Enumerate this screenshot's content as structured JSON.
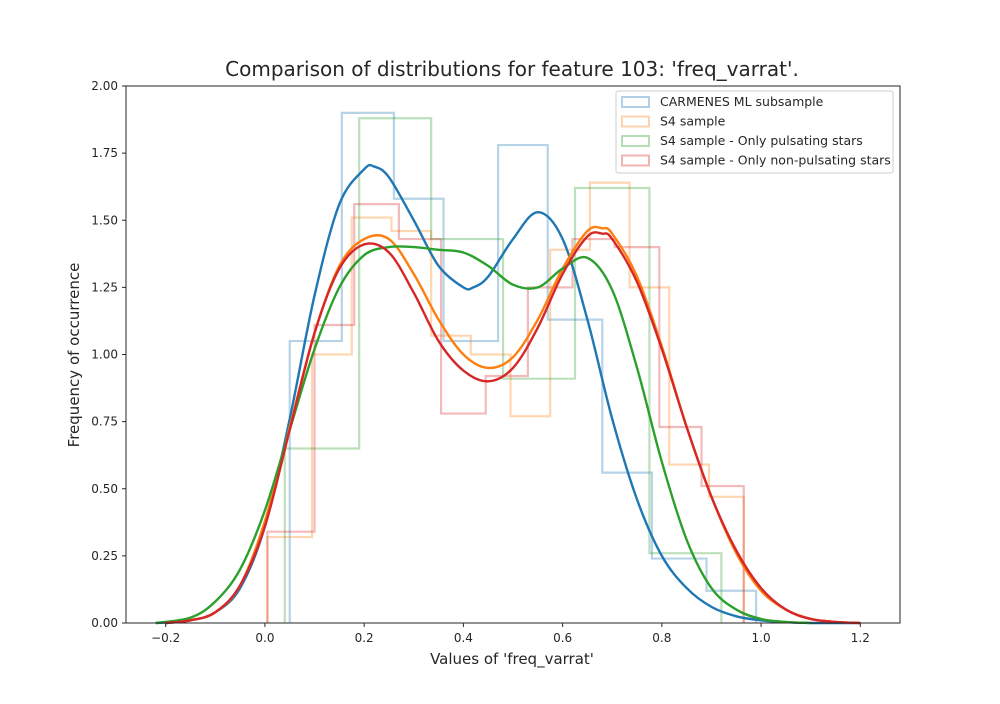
{
  "chart_data": {
    "type": "histogram-kde",
    "title": "Comparison of distributions for feature 103: 'freq_varrat'.",
    "xlabel": "Values of 'freq_varrat'",
    "ylabel": "Frequency of occurrence",
    "xlim": [
      -0.28,
      1.28
    ],
    "ylim": [
      0.0,
      2.0
    ],
    "xticks": [
      -0.2,
      0.0,
      0.2,
      0.4,
      0.6,
      0.8,
      1.0,
      1.2
    ],
    "xtick_labels": [
      "−0.2",
      "0.0",
      "0.2",
      "0.4",
      "0.6",
      "0.8",
      "1.0",
      "1.2"
    ],
    "yticks": [
      0.0,
      0.25,
      0.5,
      0.75,
      1.0,
      1.25,
      1.5,
      1.75,
      2.0
    ],
    "ytick_labels": [
      "0.00",
      "0.25",
      "0.50",
      "0.75",
      "1.00",
      "1.25",
      "1.50",
      "1.75",
      "2.00"
    ],
    "grid": false,
    "legend_position": "top-right",
    "series": [
      {
        "name": "CARMENES ML subsample",
        "color": "#1f77b4",
        "hist": [
          {
            "x0": 0.05,
            "x1": 0.155,
            "y": 1.05
          },
          {
            "x0": 0.155,
            "x1": 0.26,
            "y": 1.9
          },
          {
            "x0": 0.26,
            "x1": 0.36,
            "y": 1.58
          },
          {
            "x0": 0.36,
            "x1": 0.47,
            "y": 1.05
          },
          {
            "x0": 0.47,
            "x1": 0.57,
            "y": 1.78
          },
          {
            "x0": 0.57,
            "x1": 0.68,
            "y": 1.13
          },
          {
            "x0": 0.68,
            "x1": 0.78,
            "y": 0.56
          },
          {
            "x0": 0.78,
            "x1": 0.89,
            "y": 0.24
          },
          {
            "x0": 0.89,
            "x1": 0.99,
            "y": 0.12
          }
        ],
        "kde": {
          "x": [
            -0.22,
            -0.15,
            -0.1,
            -0.05,
            0.0,
            0.05,
            0.1,
            0.15,
            0.2,
            0.22,
            0.25,
            0.3,
            0.35,
            0.4,
            0.42,
            0.45,
            0.5,
            0.55,
            0.6,
            0.65,
            0.7,
            0.75,
            0.8,
            0.85,
            0.9,
            0.95,
            1.0,
            1.05,
            1.1,
            1.15,
            1.2
          ],
          "y": [
            0.0,
            0.01,
            0.04,
            0.13,
            0.36,
            0.76,
            1.22,
            1.56,
            1.69,
            1.7,
            1.66,
            1.5,
            1.33,
            1.25,
            1.25,
            1.29,
            1.43,
            1.53,
            1.43,
            1.13,
            0.76,
            0.46,
            0.25,
            0.13,
            0.06,
            0.025,
            0.01,
            0.003,
            0.0,
            0.0,
            0.0
          ]
        }
      },
      {
        "name": "S4 sample",
        "color": "#ff7f0e",
        "hist": [
          {
            "x0": 0.005,
            "x1": 0.095,
            "y": 0.32
          },
          {
            "x0": 0.095,
            "x1": 0.175,
            "y": 1.0
          },
          {
            "x0": 0.175,
            "x1": 0.255,
            "y": 1.51
          },
          {
            "x0": 0.255,
            "x1": 0.335,
            "y": 1.46
          },
          {
            "x0": 0.335,
            "x1": 0.415,
            "y": 1.07
          },
          {
            "x0": 0.415,
            "x1": 0.495,
            "y": 1.0
          },
          {
            "x0": 0.495,
            "x1": 0.575,
            "y": 0.77
          },
          {
            "x0": 0.575,
            "x1": 0.655,
            "y": 1.39
          },
          {
            "x0": 0.655,
            "x1": 0.735,
            "y": 1.64
          },
          {
            "x0": 0.735,
            "x1": 0.815,
            "y": 1.25
          },
          {
            "x0": 0.815,
            "x1": 0.895,
            "y": 0.59
          },
          {
            "x0": 0.895,
            "x1": 0.965,
            "y": 0.47
          }
        ],
        "kde": {
          "x": [
            -0.2,
            -0.15,
            -0.1,
            -0.05,
            0.0,
            0.05,
            0.1,
            0.15,
            0.2,
            0.25,
            0.3,
            0.35,
            0.4,
            0.45,
            0.5,
            0.55,
            0.6,
            0.65,
            0.68,
            0.7,
            0.75,
            0.8,
            0.85,
            0.9,
            0.95,
            1.0,
            1.05,
            1.1,
            1.15,
            1.2
          ],
          "y": [
            0.0,
            0.01,
            0.04,
            0.14,
            0.38,
            0.73,
            1.08,
            1.33,
            1.43,
            1.43,
            1.3,
            1.13,
            1.0,
            0.95,
            0.99,
            1.13,
            1.32,
            1.46,
            1.47,
            1.45,
            1.29,
            1.03,
            0.73,
            0.47,
            0.26,
            0.12,
            0.05,
            0.015,
            0.004,
            0.0
          ]
        }
      },
      {
        "name": "S4 sample - Only pulsating stars",
        "color": "#2ca02c",
        "hist": [
          {
            "x0": 0.04,
            "x1": 0.19,
            "y": 0.65
          },
          {
            "x0": 0.19,
            "x1": 0.335,
            "y": 1.88
          },
          {
            "x0": 0.335,
            "x1": 0.48,
            "y": 1.43
          },
          {
            "x0": 0.48,
            "x1": 0.625,
            "y": 0.91
          },
          {
            "x0": 0.625,
            "x1": 0.775,
            "y": 1.62
          },
          {
            "x0": 0.775,
            "x1": 0.92,
            "y": 0.26
          }
        ],
        "kde": {
          "x": [
            -0.22,
            -0.15,
            -0.1,
            -0.05,
            0.0,
            0.05,
            0.1,
            0.15,
            0.2,
            0.25,
            0.3,
            0.35,
            0.4,
            0.45,
            0.5,
            0.55,
            0.6,
            0.65,
            0.7,
            0.75,
            0.8,
            0.85,
            0.9,
            0.95,
            1.0,
            1.05,
            1.1
          ],
          "y": [
            0.0,
            0.02,
            0.08,
            0.2,
            0.42,
            0.72,
            1.02,
            1.25,
            1.37,
            1.4,
            1.4,
            1.39,
            1.38,
            1.33,
            1.26,
            1.25,
            1.32,
            1.36,
            1.24,
            0.95,
            0.6,
            0.31,
            0.13,
            0.05,
            0.015,
            0.004,
            0.0
          ]
        }
      },
      {
        "name": "S4 sample - Only non-pulsating stars",
        "color": "#d62728",
        "hist": [
          {
            "x0": 0.005,
            "x1": 0.1,
            "y": 0.34
          },
          {
            "x0": 0.1,
            "x1": 0.18,
            "y": 1.11
          },
          {
            "x0": 0.18,
            "x1": 0.27,
            "y": 1.56
          },
          {
            "x0": 0.27,
            "x1": 0.355,
            "y": 1.43
          },
          {
            "x0": 0.355,
            "x1": 0.445,
            "y": 0.78
          },
          {
            "x0": 0.445,
            "x1": 0.53,
            "y": 0.92
          },
          {
            "x0": 0.53,
            "x1": 0.62,
            "y": 1.25
          },
          {
            "x0": 0.62,
            "x1": 0.705,
            "y": 1.43
          },
          {
            "x0": 0.705,
            "x1": 0.795,
            "y": 1.4
          },
          {
            "x0": 0.795,
            "x1": 0.88,
            "y": 0.73
          },
          {
            "x0": 0.88,
            "x1": 0.965,
            "y": 0.51
          }
        ],
        "kde": {
          "x": [
            -0.2,
            -0.15,
            -0.1,
            -0.05,
            0.0,
            0.05,
            0.1,
            0.15,
            0.2,
            0.25,
            0.3,
            0.35,
            0.4,
            0.45,
            0.5,
            0.55,
            0.6,
            0.65,
            0.68,
            0.7,
            0.75,
            0.8,
            0.85,
            0.9,
            0.95,
            1.0,
            1.05,
            1.1,
            1.15,
            1.2
          ],
          "y": [
            0.0,
            0.01,
            0.04,
            0.14,
            0.36,
            0.72,
            1.08,
            1.32,
            1.41,
            1.38,
            1.23,
            1.05,
            0.94,
            0.9,
            0.95,
            1.1,
            1.3,
            1.44,
            1.45,
            1.43,
            1.27,
            1.02,
            0.73,
            0.47,
            0.27,
            0.13,
            0.05,
            0.015,
            0.004,
            0.0
          ]
        }
      }
    ]
  }
}
